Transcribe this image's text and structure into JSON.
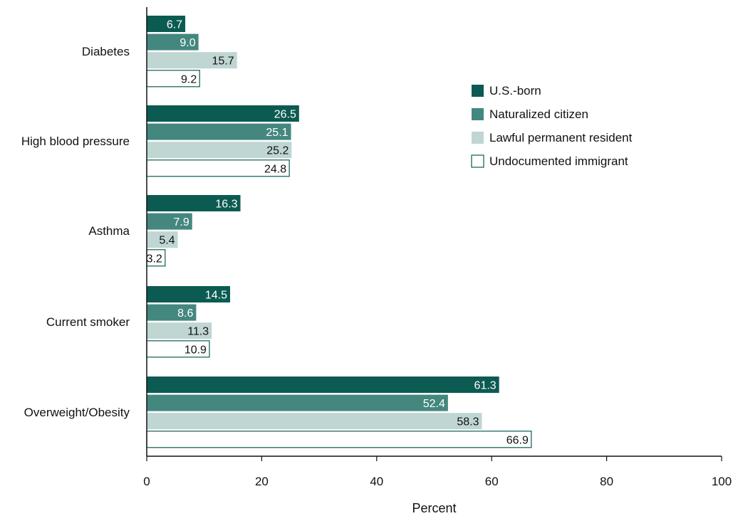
{
  "chart_data": {
    "type": "bar",
    "orientation": "horizontal",
    "categories": [
      "Diabetes",
      "High blood pressure",
      "Asthma",
      "Current smoker",
      "Overweight/Obesity"
    ],
    "series": [
      {
        "name": "U.S.-born",
        "values": [
          6.7,
          26.5,
          16.3,
          14.5,
          61.3
        ],
        "color": "#0c5b52",
        "label_color": "#ffffff",
        "outline": false
      },
      {
        "name": "Naturalized citizen",
        "values": [
          9.0,
          25.1,
          7.9,
          8.6,
          52.4
        ],
        "color": "#44877f",
        "label_color": "#ffffff",
        "outline": false
      },
      {
        "name": "Lawful permanent resident",
        "values": [
          15.7,
          25.2,
          5.4,
          11.3,
          58.3
        ],
        "color": "#bfd6d3",
        "label_color": "#111111",
        "outline": false
      },
      {
        "name": "Undocumented immigrant",
        "values": [
          9.2,
          24.8,
          3.2,
          10.9,
          66.9
        ],
        "color": "#ffffff",
        "label_color": "#111111",
        "outline": true,
        "outline_color": "#0c5b52"
      }
    ],
    "xlabel": "Percent",
    "ylabel": "",
    "xlim": [
      0,
      100
    ],
    "xticks": [
      0,
      20,
      40,
      60,
      80,
      100
    ],
    "grid": false,
    "legend": "right"
  }
}
